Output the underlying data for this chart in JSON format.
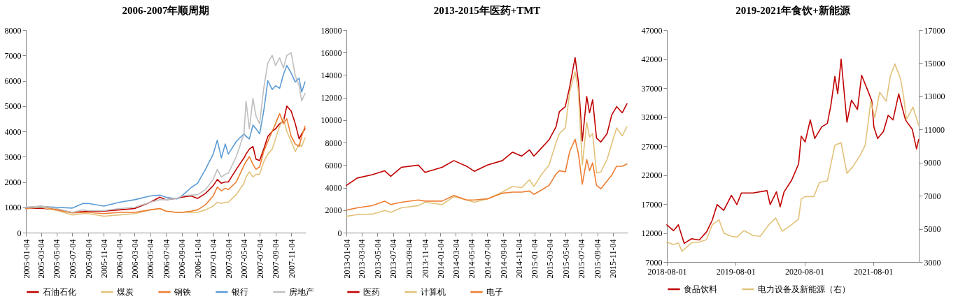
{
  "chart_data": [
    {
      "type": "line",
      "title": "2006-2007年顺周期",
      "legend": "bottom",
      "x": [
        "2005-01-04",
        "2005-03-04",
        "2005-05-04",
        "2005-07-04",
        "2005-08-15",
        "2005-09-04",
        "2005-11-04",
        "2006-01-04",
        "2006-03-04",
        "2006-05-04",
        "2006-06-10",
        "2006-07-04",
        "2006-08-15",
        "2006-09-04",
        "2006-10-10",
        "2006-11-04",
        "2006-12-05",
        "2007-01-04",
        "2007-01-20",
        "2007-02-05",
        "2007-02-20",
        "2007-03-04",
        "2007-04-04",
        "2007-05-04",
        "2007-05-12",
        "2007-05-25",
        "2007-06-08",
        "2007-06-20",
        "2007-07-04",
        "2007-07-20",
        "2007-08-05",
        "2007-08-22",
        "2007-09-04",
        "2007-09-20",
        "2007-10-05",
        "2007-10-18",
        "2007-11-04",
        "2007-11-20",
        "2007-12-05",
        "2007-12-15",
        "2007-12-28"
      ],
      "series": [
        {
          "name": "石油石化",
          "color": "#c00000",
          "values": [
            950,
            970,
            900,
            800,
            830,
            850,
            850,
            900,
            950,
            1200,
            1400,
            1300,
            1350,
            1400,
            1450,
            1350,
            1550,
            1850,
            2100,
            1950,
            2000,
            2000,
            2500,
            2950,
            3100,
            3300,
            3400,
            2900,
            2850,
            3300,
            3800,
            4000,
            4100,
            4300,
            4400,
            5000,
            4800,
            4300,
            3700,
            3900,
            4100
          ]
        },
        {
          "name": "煤炭",
          "color": "#e2c27a",
          "values": [
            950,
            1000,
            880,
            700,
            750,
            750,
            650,
            700,
            750,
            900,
            950,
            850,
            800,
            800,
            800,
            800,
            900,
            1050,
            1200,
            1150,
            1200,
            1200,
            1500,
            1950,
            2200,
            2400,
            2200,
            2300,
            2300,
            2800,
            3100,
            3300,
            3700,
            4200,
            4500,
            4000,
            3600,
            3200,
            3500,
            3400,
            3750
          ]
        },
        {
          "name": "钢铁",
          "color": "#ed7d31",
          "values": [
            950,
            1050,
            900,
            780,
            800,
            800,
            750,
            800,
            800,
            900,
            950,
            850,
            800,
            800,
            850,
            900,
            1100,
            1450,
            1800,
            1650,
            1750,
            1700,
            2000,
            2650,
            2800,
            3000,
            2700,
            2500,
            2600,
            3200,
            3600,
            4000,
            4300,
            4700,
            4300,
            4500,
            3800,
            3500,
            3400,
            3800,
            4200
          ]
        },
        {
          "name": "银行",
          "color": "#5b9bd5",
          "values": [
            1000,
            1030,
            1000,
            970,
            1150,
            1150,
            1050,
            1200,
            1300,
            1450,
            1480,
            1400,
            1330,
            1450,
            1780,
            1950,
            2500,
            3100,
            3650,
            2950,
            3500,
            3100,
            3600,
            3900,
            3800,
            3700,
            4250,
            4100,
            3900,
            4800,
            6000,
            5650,
            5800,
            5700,
            6250,
            6600,
            6300,
            5950,
            6100,
            5550,
            5950
          ]
        },
        {
          "name": "房地产",
          "color": "#bfbfbf",
          "values": [
            1000,
            1050,
            950,
            800,
            900,
            870,
            870,
            950,
            1000,
            1200,
            1300,
            1300,
            1350,
            1450,
            1480,
            1500,
            1700,
            2100,
            2500,
            2200,
            2300,
            2350,
            3000,
            3900,
            5200,
            4100,
            5300,
            4600,
            4300,
            5700,
            6700,
            7000,
            6600,
            6900,
            6500,
            7000,
            7100,
            6200,
            5800,
            5200,
            5500
          ]
        }
      ],
      "xlim": [
        "2005-01-04",
        "2007-12-31"
      ],
      "xticks": [
        "2005-01-04",
        "2005-03-04",
        "2005-05-04",
        "2005-07-04",
        "2005-09-04",
        "2005-11-04",
        "2006-01-04",
        "2006-03-04",
        "2006-05-04",
        "2006-07-04",
        "2006-09-04",
        "2006-11-04",
        "2007-01-04",
        "2007-03-04",
        "2007-05-04",
        "2007-07-04",
        "2007-09-04",
        "2007-11-04"
      ],
      "ylim": [
        0,
        8000
      ],
      "yticks": [
        0,
        1000,
        2000,
        3000,
        4000,
        5000,
        6000,
        7000,
        8000
      ]
    },
    {
      "type": "line",
      "title": "2013-2015年医药+TMT",
      "legend": "bottom",
      "x": [
        "2013-01-04",
        "2013-02-15",
        "2013-04-15",
        "2013-06-01",
        "2013-06-25",
        "2013-08-05",
        "2013-10-10",
        "2013-11-05",
        "2014-01-10",
        "2014-02-25",
        "2014-04-15",
        "2014-05-15",
        "2014-07-05",
        "2014-09-01",
        "2014-10-10",
        "2014-11-15",
        "2014-12-15",
        "2015-01-01",
        "2015-02-01",
        "2015-03-01",
        "2015-03-28",
        "2015-04-10",
        "2015-05-03",
        "2015-05-20",
        "2015-06-10",
        "2015-06-23",
        "2015-07-08",
        "2015-07-25",
        "2015-08-05",
        "2015-08-17",
        "2015-09-01",
        "2015-09-18",
        "2015-10-12",
        "2015-10-30",
        "2015-11-18",
        "2015-12-10",
        "2015-12-28"
      ],
      "series": [
        {
          "name": "医药",
          "color": "#c00000",
          "values": [
            4200,
            4850,
            5150,
            5500,
            5000,
            5800,
            6000,
            5350,
            5800,
            6400,
            5900,
            5450,
            6000,
            6400,
            7150,
            6800,
            7350,
            6800,
            7550,
            8250,
            9400,
            10750,
            11200,
            12950,
            15550,
            13350,
            8150,
            12100,
            10650,
            11800,
            8400,
            8050,
            8800,
            10450,
            11200,
            10650,
            11450
          ]
        },
        {
          "name": "计算机",
          "color": "#e2c27a",
          "values": [
            1450,
            1600,
            1650,
            1970,
            1800,
            2200,
            2400,
            2700,
            2500,
            3200,
            2900,
            2700,
            3000,
            3600,
            4100,
            4000,
            4700,
            4100,
            5200,
            6000,
            8000,
            8800,
            9300,
            12500,
            14300,
            12500,
            6000,
            9800,
            8500,
            8800,
            5300,
            5400,
            6500,
            7900,
            9300,
            8600,
            9400
          ]
        },
        {
          "name": "电子",
          "color": "#ed7d31",
          "values": [
            2000,
            2200,
            2400,
            2800,
            2500,
            2700,
            2900,
            2800,
            2800,
            3300,
            2900,
            2900,
            3000,
            3500,
            3600,
            3600,
            3700,
            3400,
            3800,
            4200,
            5200,
            5500,
            5400,
            7200,
            8300,
            7000,
            4300,
            6500,
            5500,
            6200,
            4200,
            3900,
            4600,
            5100,
            5900,
            5900,
            6100
          ]
        }
      ],
      "xlim": [
        "2013-01-04",
        "2015-12-31"
      ],
      "xticks": [
        "2013-01-04",
        "2013-03-04",
        "2013-05-04",
        "2013-07-04",
        "2013-09-04",
        "2013-11-04",
        "2014-01-04",
        "2014-03-04",
        "2014-05-04",
        "2014-07-04",
        "2014-09-04",
        "2014-11-04",
        "2015-01-04",
        "2015-03-04",
        "2015-05-04",
        "2015-07-04",
        "2015-09-04",
        "2015-11-04"
      ],
      "ylim": [
        0,
        18000
      ],
      "yticks": [
        0,
        2000,
        4000,
        6000,
        8000,
        10000,
        12000,
        14000,
        16000,
        18000
      ]
    },
    {
      "type": "line",
      "title": "2019-2021年食饮+新能源",
      "legend": "bottom",
      "series": [
        {
          "name": "食品饮料",
          "color": "#c00000",
          "x": [
            "2018-08-01",
            "2018-09-05",
            "2018-10-01",
            "2018-11-01",
            "2018-12-10",
            "2019-01-20",
            "2019-02-28",
            "2019-03-30",
            "2019-04-25",
            "2019-05-30",
            "2019-07-10",
            "2019-08-08",
            "2019-09-01",
            "2019-11-01",
            "2020-01-15",
            "2020-02-01",
            "2020-03-05",
            "2020-03-25",
            "2020-04-15",
            "2020-05-25",
            "2020-07-01",
            "2020-07-15",
            "2020-08-05",
            "2020-09-01",
            "2020-09-25",
            "2020-11-01",
            "2020-12-01",
            "2020-12-20",
            "2021-01-10",
            "2021-01-25",
            "2021-02-12",
            "2021-03-15",
            "2021-04-08",
            "2021-05-10",
            "2021-06-01",
            "2021-07-01",
            "2021-07-25",
            "2021-08-05",
            "2021-08-25",
            "2021-09-25",
            "2021-10-20",
            "2021-11-15",
            "2021-12-15",
            "2022-01-20",
            "2022-02-25",
            "2022-03-20",
            "2022-03-31"
          ],
          "values": [
            13400,
            12400,
            13400,
            10200,
            11000,
            10800,
            12200,
            14200,
            16900,
            15900,
            18500,
            16900,
            18900,
            18900,
            19300,
            16900,
            19100,
            16500,
            19100,
            21100,
            23900,
            28700,
            27700,
            31500,
            28300,
            30300,
            30900,
            34100,
            39000,
            36000,
            42000,
            31100,
            34900,
            33300,
            39200,
            36800,
            34800,
            30300,
            28300,
            29500,
            32300,
            31500,
            36000,
            31500,
            29900,
            26500,
            28100
          ]
        },
        {
          "name": "电力设备及新能源（右）",
          "color": "#e2c27a",
          "axis": "y2",
          "x": [
            "2018-08-01",
            "2018-09-05",
            "2018-10-01",
            "2018-10-20",
            "2018-12-10",
            "2019-01-20",
            "2019-02-28",
            "2019-03-30",
            "2019-05-05",
            "2019-05-30",
            "2019-07-10",
            "2019-08-08",
            "2019-09-15",
            "2019-11-01",
            "2019-12-10",
            "2020-01-25",
            "2020-03-01",
            "2020-04-05",
            "2020-05-25",
            "2020-07-01",
            "2020-07-15",
            "2020-08-05",
            "2020-09-20",
            "2020-10-20",
            "2020-12-01",
            "2021-01-10",
            "2021-02-12",
            "2021-03-15",
            "2021-04-15",
            "2021-05-25",
            "2021-06-20",
            "2021-07-20",
            "2021-08-10",
            "2021-09-05",
            "2021-10-10",
            "2021-11-01",
            "2021-11-25",
            "2021-12-25",
            "2022-01-10",
            "2022-01-25",
            "2022-03-01",
            "2022-03-31"
          ],
          "values": [
            4200,
            4050,
            4150,
            3650,
            4150,
            4200,
            4350,
            5250,
            5550,
            4750,
            4550,
            4500,
            4900,
            4600,
            4550,
            5250,
            5650,
            4850,
            5250,
            5600,
            6800,
            6950,
            6950,
            7800,
            7900,
            10050,
            10200,
            8350,
            8750,
            9450,
            10050,
            12700,
            11700,
            13250,
            12700,
            14250,
            14950,
            14050,
            13000,
            11600,
            12350,
            11250
          ]
        }
      ],
      "xlim": [
        "2018-08-01",
        "2022-04-01"
      ],
      "xticks": [
        "2018-08-01",
        "2019-08-01",
        "2020-08-01",
        "2021-08-01"
      ],
      "ylim": [
        7000,
        47000
      ],
      "yticks": [
        7000,
        12000,
        17000,
        22000,
        27000,
        32000,
        37000,
        42000,
        47000
      ],
      "y2lim": [
        3000,
        17000
      ],
      "y2ticks": [
        3000,
        5000,
        7000,
        9000,
        11000,
        13000,
        15000,
        17000
      ]
    }
  ]
}
